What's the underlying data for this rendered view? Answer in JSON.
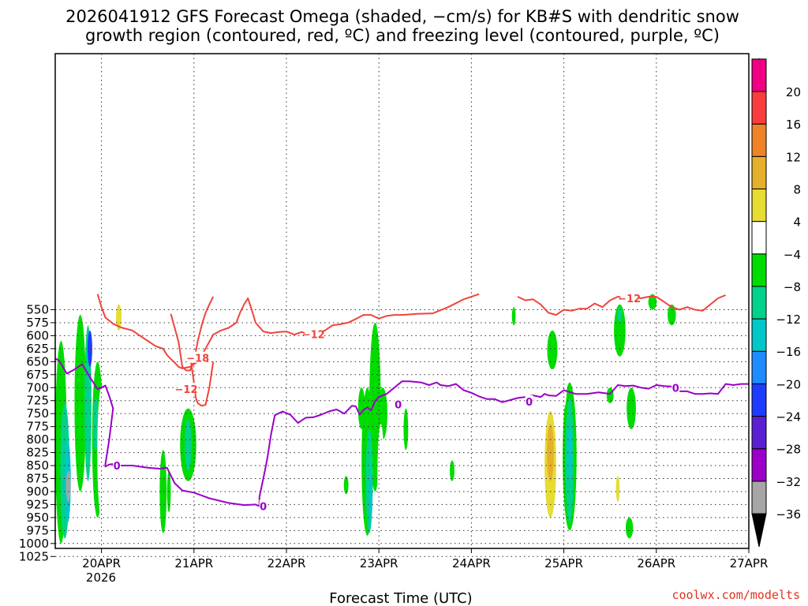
{
  "chart_data": {
    "type": "heatmap",
    "title_lines": [
      "2026041912 GFS Forecast Omega (shaded, −cm/s) for KB#S with dendritic snow",
      "growth region (contoured, red, ºC) and freezing level (contoured, purple, ºC)"
    ],
    "xlabel": "Forecast Time (UTC)",
    "credit": "coolwx.com/modelts",
    "x_ticks": [
      "20APR",
      "21APR",
      "22APR",
      "23APR",
      "24APR",
      "25APR",
      "26APR",
      "27APR"
    ],
    "x_tick_hours": [
      12,
      36,
      60,
      84,
      108,
      132,
      156,
      180
    ],
    "year_label": "2026",
    "x_range_hours": [
      0,
      180
    ],
    "y_ticks": [
      550,
      575,
      600,
      625,
      650,
      675,
      700,
      725,
      750,
      775,
      800,
      825,
      850,
      875,
      900,
      925,
      950,
      975,
      1000,
      1025
    ],
    "y_range_hpa": [
      525,
      1035
    ],
    "colorbar": {
      "levels": [
        -36,
        -32,
        -28,
        -24,
        -20,
        -16,
        -12,
        -8,
        -4,
        4,
        8,
        12,
        16,
        20
      ],
      "colors": [
        "#a6a6a6",
        "#9c00c8",
        "#5a1fd2",
        "#1e3cff",
        "#1e8cff",
        "#00c8c8",
        "#00d28c",
        "#00dc00",
        "#ffffff",
        "#e6dc32",
        "#e6af2d",
        "#f08228",
        "#fa3c3c",
        "#f00082"
      ],
      "under_color": "#000000",
      "over_color": "#f00082"
    },
    "shaded_regions": [
      {
        "h": 1.5,
        "p0": 610,
        "p1": 1000,
        "w": 2.5,
        "v": -8
      },
      {
        "h": 2.5,
        "p0": 730,
        "p1": 990,
        "w": 2,
        "v": -12
      },
      {
        "h": 3.2,
        "p0": 800,
        "p1": 960,
        "w": 1.4,
        "v": -16
      },
      {
        "h": 3.4,
        "p0": 860,
        "p1": 920,
        "w": 1,
        "v": -36
      },
      {
        "h": 6.5,
        "p0": 560,
        "p1": 900,
        "w": 2.5,
        "v": -8
      },
      {
        "h": 8.5,
        "p0": 580,
        "p1": 880,
        "w": 1.5,
        "v": -12
      },
      {
        "h": 9,
        "p0": 590,
        "p1": 660,
        "w": 1,
        "v": -24
      },
      {
        "h": 11,
        "p0": 650,
        "p1": 950,
        "w": 2.4,
        "v": -8
      },
      {
        "h": 10.5,
        "p0": 720,
        "p1": 820,
        "w": 1.2,
        "v": -12
      },
      {
        "h": 15.5,
        "p0": 520,
        "p1": 600,
        "w": 3,
        "v": 4
      },
      {
        "h": 16.5,
        "p0": 540,
        "p1": 590,
        "w": 1.2,
        "v": 8
      },
      {
        "h": 12,
        "p0": 700,
        "p1": 950,
        "w": 1.8,
        "v": 4
      },
      {
        "h": 14,
        "p0": 760,
        "p1": 980,
        "w": 1.5,
        "v": 4
      },
      {
        "h": 24.5,
        "p0": 760,
        "p1": 930,
        "w": 2.5,
        "v": 4
      },
      {
        "h": 20,
        "p0": 520,
        "p1": 580,
        "w": 1.5,
        "v": 4
      },
      {
        "h": 23,
        "p0": 600,
        "p1": 700,
        "w": 1.4,
        "v": 4
      },
      {
        "h": 34.5,
        "p0": 740,
        "p1": 880,
        "w": 3.5,
        "v": -8
      },
      {
        "h": 34.5,
        "p0": 760,
        "p1": 860,
        "w": 1.5,
        "v": -12
      },
      {
        "h": 28,
        "p0": 820,
        "p1": 980,
        "w": 1.5,
        "v": -8
      },
      {
        "h": 29.5,
        "p0": 860,
        "p1": 940,
        "w": 0.8,
        "v": -8
      },
      {
        "h": 32,
        "p0": 540,
        "p1": 720,
        "w": 3,
        "v": 4
      },
      {
        "h": 35,
        "p0": 560,
        "p1": 630,
        "w": 1,
        "v": 4
      },
      {
        "h": 38,
        "p0": 560,
        "p1": 720,
        "w": 2.5,
        "v": 4
      },
      {
        "h": 39,
        "p0": 770,
        "p1": 930,
        "w": 3.5,
        "v": 4
      },
      {
        "h": 45,
        "p0": 560,
        "p1": 640,
        "w": 1.5,
        "v": 4
      },
      {
        "h": 48,
        "p0": 630,
        "p1": 680,
        "w": 1.2,
        "v": 4
      },
      {
        "h": 50,
        "p0": 620,
        "p1": 720,
        "w": 1.8,
        "v": 4
      },
      {
        "h": 57,
        "p0": 860,
        "p1": 985,
        "w": 1.6,
        "v": 4
      },
      {
        "h": 78.5,
        "p0": 520,
        "p1": 620,
        "w": 2,
        "v": 4
      },
      {
        "h": 83,
        "p0": 575,
        "p1": 900,
        "w": 2.5,
        "v": -8
      },
      {
        "h": 81,
        "p0": 700,
        "p1": 985,
        "w": 2.5,
        "v": -8
      },
      {
        "h": 81.5,
        "p0": 780,
        "p1": 980,
        "w": 1.5,
        "v": -12
      },
      {
        "h": 81.8,
        "p0": 860,
        "p1": 960,
        "w": 0.8,
        "v": -16
      },
      {
        "h": 79.5,
        "p0": 700,
        "p1": 780,
        "w": 1.5,
        "v": -8
      },
      {
        "h": 85,
        "p0": 700,
        "p1": 800,
        "w": 2,
        "v": -8
      },
      {
        "h": 84.5,
        "p0": 770,
        "p1": 990,
        "w": 1.5,
        "v": 4
      },
      {
        "h": 87,
        "p0": 760,
        "p1": 860,
        "w": 1.5,
        "v": 4
      },
      {
        "h": 89,
        "p0": 800,
        "p1": 860,
        "w": 1,
        "v": 4
      },
      {
        "h": 75.5,
        "p0": 870,
        "p1": 905,
        "w": 1,
        "v": -8
      },
      {
        "h": 91,
        "p0": 740,
        "p1": 820,
        "w": 1,
        "v": -8
      },
      {
        "h": 103,
        "p0": 840,
        "p1": 880,
        "w": 1,
        "v": -8
      },
      {
        "h": 98,
        "p0": 880,
        "p1": 950,
        "w": 1,
        "v": 4
      },
      {
        "h": 110,
        "p0": 520,
        "p1": 560,
        "w": 2.5,
        "v": 4
      },
      {
        "h": 119,
        "p0": 545,
        "p1": 580,
        "w": 0.8,
        "v": -8
      },
      {
        "h": 120.5,
        "p0": 650,
        "p1": 700,
        "w": 1.2,
        "v": 4
      },
      {
        "h": 129,
        "p0": 590,
        "p1": 665,
        "w": 2.2,
        "v": -8
      },
      {
        "h": 128.5,
        "p0": 745,
        "p1": 950,
        "w": 2.5,
        "v": 8
      },
      {
        "h": 128.5,
        "p0": 770,
        "p1": 880,
        "w": 1.5,
        "v": 12
      },
      {
        "h": 133.5,
        "p0": 690,
        "p1": 975,
        "w": 3,
        "v": -8
      },
      {
        "h": 133.5,
        "p0": 720,
        "p1": 960,
        "w": 1.8,
        "v": -12
      },
      {
        "h": 133.5,
        "p0": 770,
        "p1": 880,
        "w": 0.8,
        "v": -16
      },
      {
        "h": 132,
        "p0": 600,
        "p1": 740,
        "w": 1.5,
        "v": 4
      },
      {
        "h": 137,
        "p0": 690,
        "p1": 970,
        "w": 2.5,
        "v": 4
      },
      {
        "h": 139,
        "p0": 690,
        "p1": 710,
        "w": 2,
        "v": 4
      },
      {
        "h": 146.5,
        "p0": 540,
        "p1": 640,
        "w": 2.5,
        "v": -8
      },
      {
        "h": 146.5,
        "p0": 545,
        "p1": 575,
        "w": 1,
        "v": -12
      },
      {
        "h": 144,
        "p0": 700,
        "p1": 730,
        "w": 1.5,
        "v": -8
      },
      {
        "h": 146,
        "p0": 840,
        "p1": 960,
        "w": 1.5,
        "v": 4
      },
      {
        "h": 146,
        "p0": 870,
        "p1": 920,
        "w": 0.8,
        "v": 8
      },
      {
        "h": 149.5,
        "p0": 700,
        "p1": 780,
        "w": 2,
        "v": -8
      },
      {
        "h": 149,
        "p0": 950,
        "p1": 990,
        "w": 1.6,
        "v": -8
      },
      {
        "h": 152.5,
        "p0": 870,
        "p1": 910,
        "w": 1.5,
        "v": 4
      },
      {
        "h": 155,
        "p0": 520,
        "p1": 550,
        "w": 1.8,
        "v": -8
      },
      {
        "h": 160,
        "p0": 540,
        "p1": 580,
        "w": 1.8,
        "v": -8
      },
      {
        "h": 166,
        "p0": 710,
        "p1": 770,
        "w": 1.8,
        "v": 4
      },
      {
        "h": 168,
        "p0": 720,
        "p1": 760,
        "w": 1.2,
        "v": 4
      }
    ],
    "freezing_level_0C": {
      "label": "0",
      "hours": [
        -1,
        1,
        3,
        5,
        7,
        9,
        11,
        13,
        14,
        15,
        14,
        13,
        13,
        14,
        14,
        15,
        16,
        20,
        24,
        27,
        29,
        31,
        33,
        36,
        40,
        45,
        49,
        52,
        53,
        53,
        54,
        55,
        56,
        57,
        59,
        61,
        63,
        65,
        67,
        69,
        71,
        73,
        75,
        77,
        78,
        79,
        80,
        81,
        82,
        83,
        84,
        86,
        88,
        90,
        92,
        95,
        97,
        99,
        100,
        102,
        104,
        106,
        108,
        110,
        112,
        114,
        116,
        118,
        120,
        122,
        124,
        126,
        127,
        128,
        130,
        132,
        135,
        138,
        141,
        144,
        146,
        148,
        150,
        152,
        154,
        156,
        158,
        160,
        162,
        164,
        166,
        168,
        170,
        172,
        174,
        176,
        178,
        180
      ],
      "pressures": [
        640,
        648,
        673,
        665,
        655,
        680,
        703,
        696,
        716,
        740,
        800,
        848,
        852,
        848,
        848,
        847,
        850,
        850,
        854,
        856,
        854,
        884,
        898,
        902,
        913,
        922,
        926,
        925,
        928,
        910,
        875,
        838,
        790,
        753,
        746,
        752,
        768,
        758,
        757,
        752,
        746,
        742,
        750,
        735,
        736,
        752,
        743,
        738,
        744,
        726,
        718,
        712,
        700,
        688,
        688,
        690,
        695,
        690,
        695,
        697,
        693,
        705,
        710,
        717,
        722,
        722,
        728,
        724,
        720,
        718,
        715,
        718,
        712,
        715,
        716,
        705,
        712,
        712,
        709,
        712,
        695,
        697,
        696,
        700,
        702,
        695,
        697,
        698,
        707,
        707,
        712,
        712,
        711,
        712,
        693,
        695,
        693,
        693
      ],
      "label_positions": [
        {
          "h": 16,
          "p": 850
        },
        {
          "h": 54,
          "p": 928
        },
        {
          "h": 89,
          "p": 732
        },
        {
          "h": 123,
          "p": 727
        },
        {
          "h": 161,
          "p": 700
        }
      ]
    },
    "dgz_contours_red": [
      {
        "label": "−12",
        "hours": [
          11,
          12,
          13,
          15,
          17,
          20,
          22,
          24,
          26,
          28,
          29,
          30,
          31,
          32,
          33,
          35,
          37,
          39,
          41,
          43,
          45,
          47,
          48,
          49,
          50,
          51,
          52,
          54,
          56,
          58,
          60,
          62,
          64,
          66,
          68,
          70,
          72,
          74,
          76,
          78,
          80,
          82,
          84,
          86,
          88,
          90,
          94,
          98,
          102,
          106,
          110
        ],
        "pressures": [
          520,
          545,
          565,
          577,
          584,
          590,
          600,
          610,
          620,
          625,
          637,
          645,
          652,
          660,
          663,
          660,
          650,
          625,
          598,
          590,
          585,
          575,
          555,
          540,
          528,
          550,
          575,
          592,
          595,
          593,
          592,
          598,
          593,
          598,
          597,
          590,
          580,
          578,
          575,
          568,
          560,
          560,
          567,
          562,
          560,
          560,
          558,
          557,
          545,
          530,
          520
        ]
      },
      {
        "label": "−18",
        "hours": [
          30,
          31,
          32,
          32.5,
          33,
          34,
          35,
          36,
          37,
          38,
          39,
          40,
          41
        ],
        "pressures": [
          558,
          585,
          612,
          636,
          660,
          667,
          667,
          650,
          610,
          580,
          556,
          540,
          525
        ]
      },
      {
        "label": "−12",
        "hours": [
          35,
          35.5,
          36,
          36.5,
          37,
          38,
          39,
          40,
          41
        ],
        "pressures": [
          640,
          665,
          690,
          720,
          730,
          735,
          733,
          700,
          650
        ]
      },
      {
        "label": "−12",
        "hours": [
          120,
          122,
          124,
          126,
          128,
          130,
          132,
          134,
          136,
          138,
          140,
          142,
          144,
          146,
          148,
          150,
          152,
          154,
          156,
          158,
          160,
          162,
          164,
          166,
          168,
          170,
          172,
          174
        ],
        "pressures": [
          525,
          532,
          530,
          540,
          556,
          560,
          550,
          552,
          548,
          548,
          538,
          545,
          532,
          525,
          528,
          525,
          528,
          525,
          525,
          535,
          545,
          550,
          545,
          550,
          552,
          540,
          528,
          522
        ]
      }
    ],
    "dgz_labels": [
      {
        "text": "−12",
        "h": 67,
        "p": 597
      },
      {
        "text": "−18",
        "h": 37,
        "p": 643
      },
      {
        "text": "−12",
        "h": 34,
        "p": 703
      },
      {
        "text": "−12",
        "h": 149,
        "p": 528
      }
    ],
    "terrain_fill_color": "#a0522d"
  }
}
